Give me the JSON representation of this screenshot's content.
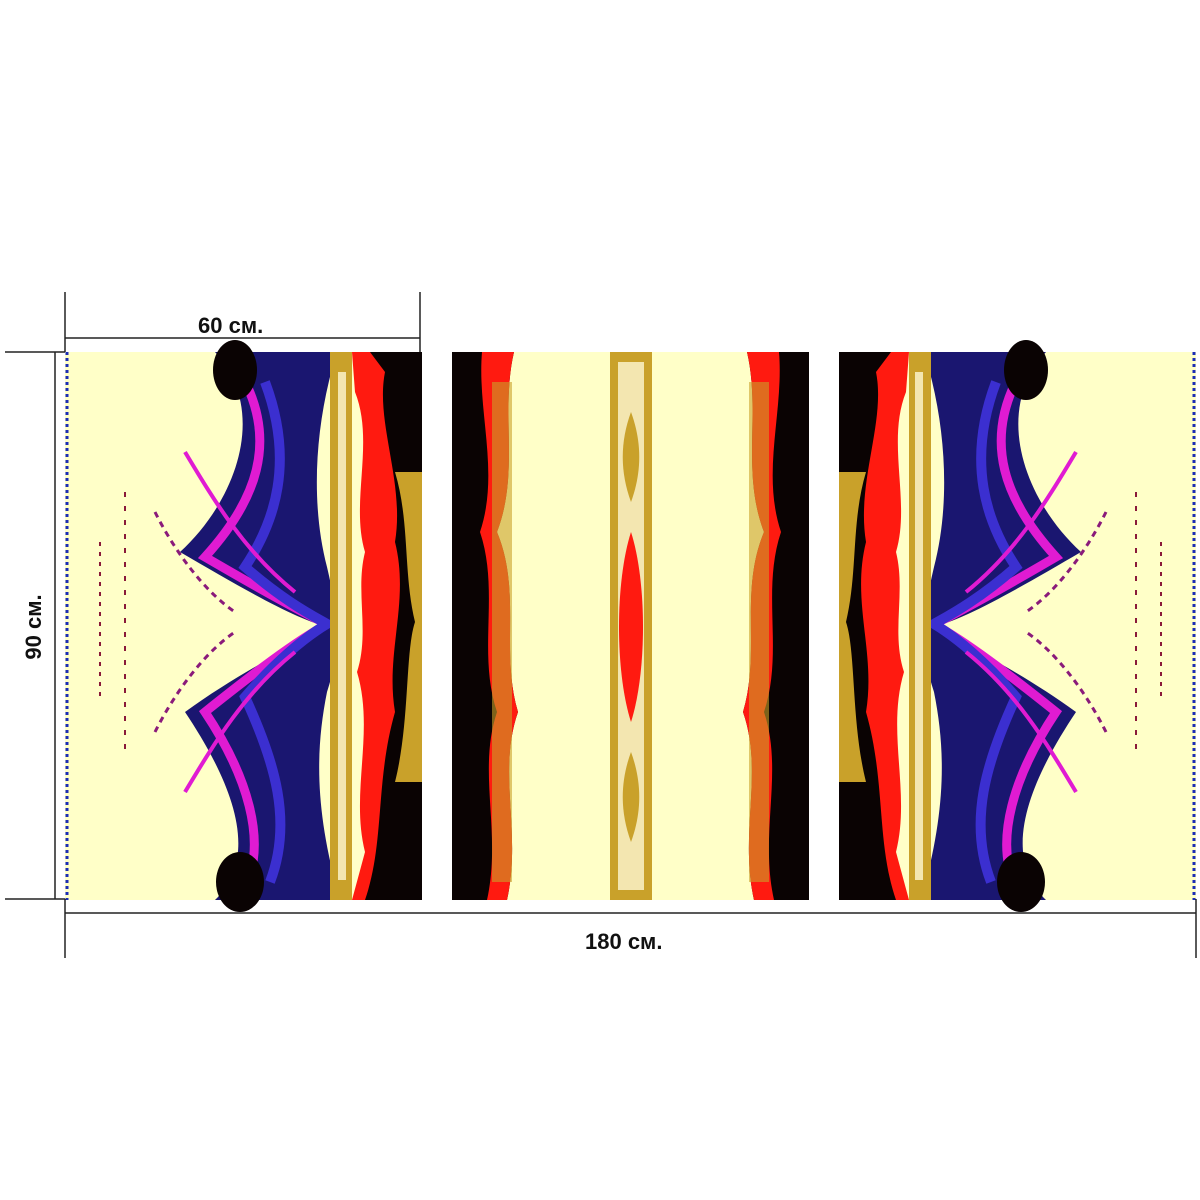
{
  "dimensions": {
    "panel_width_label": "60 см.",
    "height_label": "90 см.",
    "total_width_label": "180 см."
  },
  "product": {
    "panels": [
      "left-panel",
      "center-panel",
      "right-panel"
    ]
  },
  "colors": {
    "cream": "#ffffc8",
    "black": "#0a0303",
    "red": "#ff1a10",
    "gold": "#c9a12a",
    "navy": "#1a1670",
    "blue": "#3b2fd0",
    "magenta": "#e01bd2",
    "dim_line": "#222222",
    "dashed_edge": "#1b2cb5"
  }
}
